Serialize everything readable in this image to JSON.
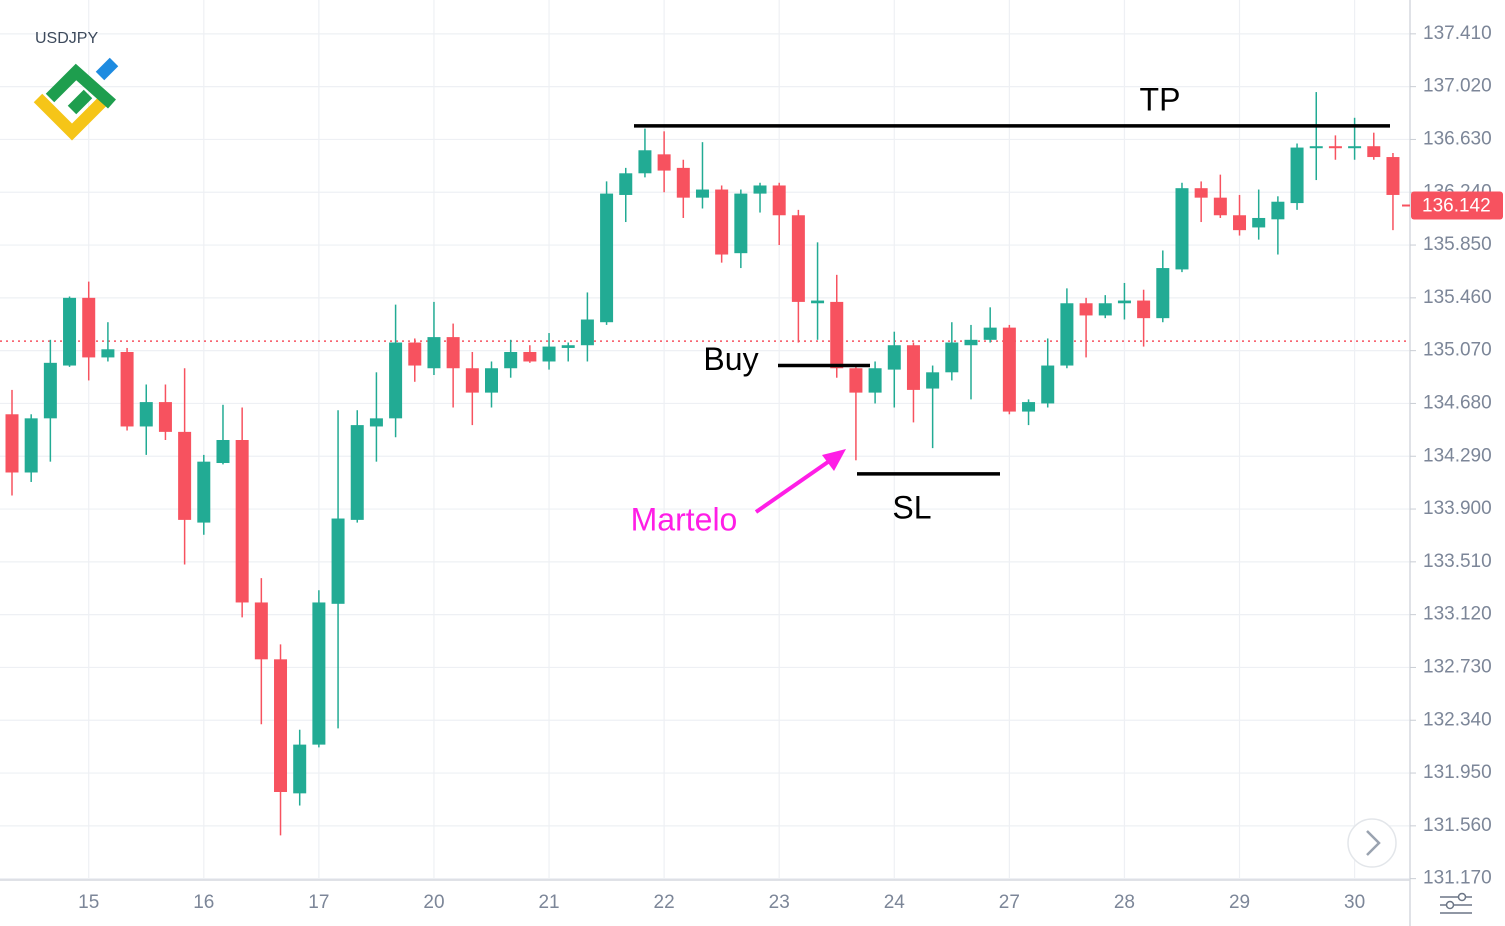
{
  "chart_data": {
    "type": "candlestick",
    "symbol": "USDJPY",
    "categories": [
      null,
      null,
      null,
      null,
      "15",
      null,
      null,
      null,
      null,
      null,
      "16",
      null,
      null,
      null,
      null,
      null,
      "17",
      null,
      null,
      null,
      null,
      null,
      "20",
      null,
      null,
      null,
      null,
      null,
      "21",
      null,
      null,
      null,
      null,
      null,
      "22",
      null,
      null,
      null,
      null,
      null,
      "23",
      null,
      null,
      null,
      null,
      null,
      "24",
      null,
      null,
      null,
      null,
      null,
      "27",
      null,
      null,
      null,
      null,
      null,
      "28",
      null,
      null,
      null,
      null,
      null,
      "29",
      null,
      null,
      null,
      null,
      null,
      "30",
      null,
      null
    ],
    "open": [
      134.6,
      134.17,
      134.57,
      134.96,
      135.46,
      135.02,
      135.06,
      134.51,
      134.69,
      134.47,
      133.8,
      134.24,
      134.41,
      133.21,
      132.79,
      131.8,
      132.16,
      133.2,
      133.82,
      134.51,
      134.57,
      135.13,
      134.94,
      135.17,
      134.94,
      134.76,
      134.94,
      135.06,
      134.99,
      135.09,
      135.11,
      135.28,
      136.22,
      136.38,
      136.52,
      136.42,
      136.2,
      136.26,
      135.79,
      136.23,
      136.29,
      136.07,
      135.42,
      135.43,
      134.94,
      134.76,
      134.93,
      135.11,
      134.79,
      134.91,
      135.11,
      135.15,
      135.24,
      134.62,
      134.68,
      134.96,
      135.42,
      135.33,
      135.42,
      135.44,
      135.31,
      135.67,
      136.27,
      136.2,
      136.07,
      135.98,
      136.04,
      136.16,
      136.57,
      136.58,
      136.57,
      136.58,
      136.5
    ],
    "high": [
      134.78,
      134.6,
      135.15,
      135.47,
      135.58,
      135.28,
      135.09,
      134.82,
      134.82,
      134.94,
      134.3,
      134.67,
      134.65,
      133.39,
      132.9,
      132.27,
      133.3,
      134.63,
      134.63,
      134.91,
      135.41,
      135.16,
      135.43,
      135.27,
      135.06,
      134.99,
      135.15,
      135.11,
      135.2,
      135.13,
      135.5,
      136.32,
      136.42,
      136.71,
      136.69,
      136.48,
      136.61,
      136.29,
      136.26,
      136.31,
      136.31,
      136.11,
      135.87,
      135.63,
      134.96,
      134.99,
      135.21,
      135.13,
      134.96,
      135.28,
      135.26,
      135.39,
      135.26,
      134.71,
      135.16,
      135.53,
      135.46,
      135.48,
      135.57,
      135.52,
      135.81,
      136.31,
      136.32,
      136.37,
      136.22,
      136.26,
      136.21,
      136.6,
      136.98,
      136.66,
      136.79,
      136.68,
      136.53
    ],
    "low": [
      134.0,
      134.1,
      134.25,
      134.95,
      134.85,
      134.99,
      134.48,
      134.3,
      134.41,
      133.49,
      133.71,
      134.23,
      133.1,
      132.31,
      131.49,
      131.71,
      132.14,
      132.28,
      133.8,
      134.25,
      134.43,
      134.84,
      134.89,
      134.65,
      134.52,
      134.65,
      134.87,
      134.98,
      134.93,
      134.99,
      134.99,
      135.26,
      136.02,
      136.35,
      136.24,
      136.05,
      136.12,
      135.72,
      135.68,
      136.09,
      135.85,
      135.13,
      135.15,
      134.87,
      134.26,
      134.68,
      134.65,
      134.54,
      134.35,
      134.85,
      134.71,
      135.13,
      134.6,
      134.52,
      134.65,
      134.94,
      135.02,
      135.31,
      135.3,
      135.1,
      135.28,
      135.65,
      136.02,
      136.05,
      135.92,
      135.89,
      135.78,
      136.11,
      136.33,
      136.48,
      136.48,
      136.48,
      135.96
    ],
    "close": [
      134.17,
      134.57,
      134.98,
      135.46,
      135.02,
      135.08,
      134.51,
      134.69,
      134.47,
      133.82,
      134.25,
      134.41,
      133.21,
      132.79,
      131.81,
      132.16,
      133.21,
      133.83,
      134.52,
      134.57,
      135.13,
      134.96,
      135.17,
      134.94,
      134.76,
      134.94,
      135.06,
      134.99,
      135.1,
      135.11,
      135.3,
      136.23,
      136.38,
      136.55,
      136.4,
      136.2,
      136.26,
      135.78,
      136.23,
      136.29,
      136.07,
      135.43,
      135.44,
      134.94,
      134.76,
      134.94,
      135.11,
      134.78,
      134.91,
      135.13,
      135.15,
      135.24,
      134.62,
      134.69,
      134.96,
      135.42,
      135.33,
      135.42,
      135.44,
      135.31,
      135.68,
      136.27,
      136.2,
      136.07,
      135.96,
      136.05,
      136.17,
      136.57,
      136.58,
      136.57,
      136.58,
      136.5,
      136.22
    ],
    "up_color": "#22ab94",
    "down_color": "#f7525f",
    "ylim": [
      131.16,
      137.66
    ],
    "yticks": [
      {
        "value": 131.17,
        "label": "131.170"
      },
      {
        "value": 131.56,
        "label": "131.560"
      },
      {
        "value": 131.95,
        "label": "131.950"
      },
      {
        "value": 132.34,
        "label": "132.340"
      },
      {
        "value": 132.73,
        "label": "132.730"
      },
      {
        "value": 133.12,
        "label": "133.120"
      },
      {
        "value": 133.51,
        "label": "133.510"
      },
      {
        "value": 133.9,
        "label": "133.900"
      },
      {
        "value": 134.29,
        "label": "134.290"
      },
      {
        "value": 134.68,
        "label": "134.680"
      },
      {
        "value": 135.07,
        "label": "135.070"
      },
      {
        "value": 135.46,
        "label": "135.460"
      },
      {
        "value": 135.85,
        "label": "135.850"
      },
      {
        "value": 136.24,
        "label": "136.240"
      },
      {
        "value": 136.63,
        "label": "136.630"
      },
      {
        "value": 137.02,
        "label": "137.020"
      },
      {
        "value": 137.41,
        "label": "137.410"
      }
    ],
    "grid": true,
    "ref_line": 135.14,
    "last_price": 136.142,
    "annotations": [
      {
        "label": "TP",
        "value": 136.73
      },
      {
        "label": "Buy",
        "value": 134.96
      },
      {
        "label": "SL",
        "value": 134.16
      },
      {
        "label": "Martelo"
      }
    ]
  }
}
